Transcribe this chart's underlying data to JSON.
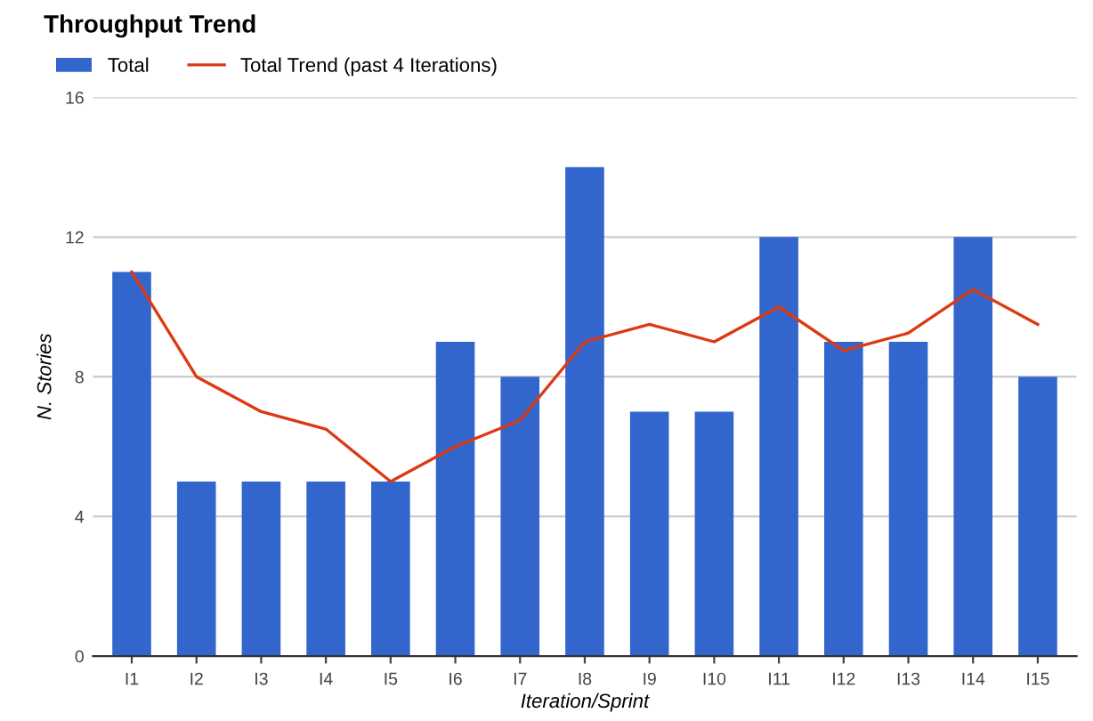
{
  "chart_data": {
    "type": "bar",
    "title": "Throughput Trend",
    "xlabel": "Iteration/Sprint",
    "ylabel": "N. Stories",
    "categories": [
      "I1",
      "I2",
      "I3",
      "I4",
      "I5",
      "I6",
      "I7",
      "I8",
      "I9",
      "I10",
      "I11",
      "I12",
      "I13",
      "I14",
      "I15"
    ],
    "series": [
      {
        "name": "Total",
        "color": "#3366cc",
        "values": [
          11,
          5,
          5,
          5,
          5,
          9,
          8,
          14,
          7,
          7,
          12,
          9,
          9,
          12,
          8
        ]
      },
      {
        "name": "Total Trend (past 4 Iterations)",
        "type": "line",
        "color": "#dc3912",
        "values": [
          11,
          8,
          7,
          6.5,
          5,
          6,
          6.75,
          9,
          9.5,
          9,
          10,
          8.75,
          9.25,
          10.5,
          9.5
        ]
      }
    ],
    "ylim": [
      0,
      16
    ],
    "yticks": [
      0,
      4,
      8,
      12,
      16
    ],
    "grid": "y",
    "legend": "top left",
    "marker": "none",
    "line_style": "solid"
  }
}
